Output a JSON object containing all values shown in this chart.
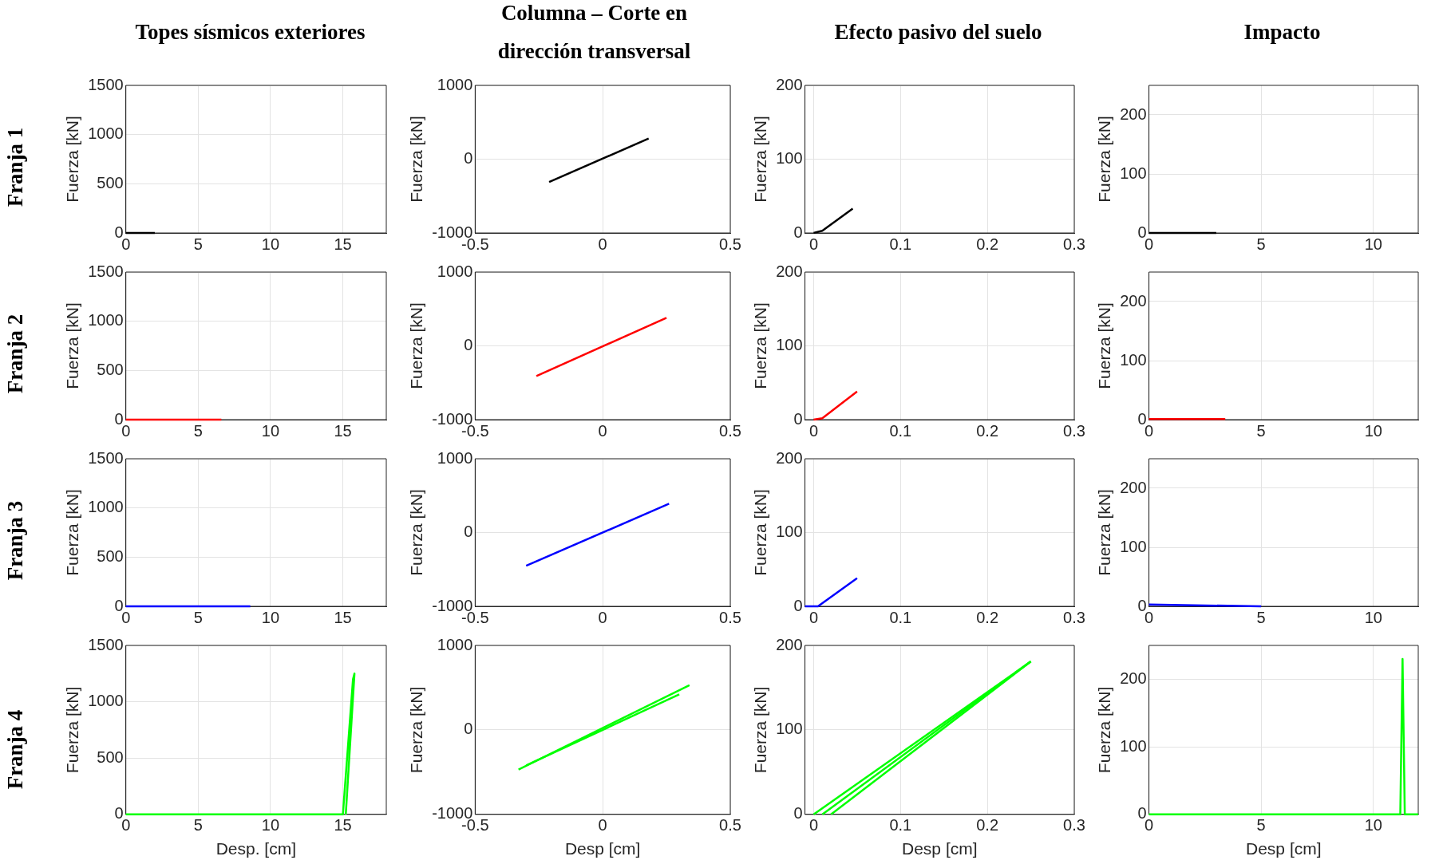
{
  "chart_data": [
    {
      "type": "line",
      "title": "Topes sísmicos exteriores",
      "annotations": [
        "Franja 1"
      ],
      "ylabel": "Fuerza [kN]",
      "xlim": [
        0,
        18
      ],
      "xticks": [
        0,
        5,
        10,
        15
      ],
      "ylim": [
        0,
        1500
      ],
      "yticks": [
        0,
        500,
        1000,
        1500
      ],
      "grid": true,
      "series": [
        {
          "color": "#000000",
          "x": [
            0,
            2
          ],
          "values": [
            0,
            0
          ]
        }
      ]
    },
    {
      "type": "line",
      "title": "Columna – Corte en dirección transversal",
      "ylabel": "Fuerza [kN]",
      "xlim": [
        -0.5,
        0.5
      ],
      "xticks": [
        -0.5,
        0,
        0.5
      ],
      "ylim": [
        -1000,
        1000
      ],
      "yticks": [
        -1000,
        0,
        1000
      ],
      "grid": true,
      "series": [
        {
          "color": "#000000",
          "x": [
            -0.21,
            0.18
          ],
          "values": [
            -310,
            280
          ]
        }
      ]
    },
    {
      "type": "line",
      "title": "Efecto pasivo del suelo",
      "ylabel": "Fuerza [kN]",
      "xlim": [
        -0.01,
        0.3
      ],
      "xticks": [
        0,
        0.1,
        0.2,
        0.3
      ],
      "ylim": [
        0,
        200
      ],
      "yticks": [
        0,
        100,
        200
      ],
      "grid": true,
      "series": [
        {
          "color": "#000000",
          "x": [
            0,
            0.01,
            0.045
          ],
          "values": [
            0,
            3,
            33
          ]
        }
      ]
    },
    {
      "type": "line",
      "title": "Impacto",
      "ylabel": "Fuerza [kN]",
      "xlim": [
        0,
        12
      ],
      "xticks": [
        0,
        5,
        10
      ],
      "ylim": [
        0,
        250
      ],
      "yticks": [
        0,
        100,
        200
      ],
      "grid": true,
      "series": [
        {
          "color": "#000000",
          "x": [
            0,
            3
          ],
          "values": [
            0,
            0
          ]
        }
      ]
    },
    {
      "type": "line",
      "annotations": [
        "Franja 2"
      ],
      "ylabel": "Fuerza [kN]",
      "xlim": [
        0,
        18
      ],
      "xticks": [
        0,
        5,
        10,
        15
      ],
      "ylim": [
        0,
        1500
      ],
      "yticks": [
        0,
        500,
        1000,
        1500
      ],
      "grid": true,
      "series": [
        {
          "color": "#ff0000",
          "x": [
            0,
            6.6
          ],
          "values": [
            0,
            0
          ]
        }
      ]
    },
    {
      "type": "line",
      "ylabel": "Fuerza [kN]",
      "xlim": [
        -0.5,
        0.5
      ],
      "xticks": [
        -0.5,
        0,
        0.5
      ],
      "ylim": [
        -1000,
        1000
      ],
      "yticks": [
        -1000,
        0,
        1000
      ],
      "grid": true,
      "series": [
        {
          "color": "#ff0000",
          "x": [
            -0.26,
            0.25
          ],
          "values": [
            -410,
            380
          ]
        }
      ]
    },
    {
      "type": "line",
      "ylabel": "Fuerza [kN]",
      "xlim": [
        -0.01,
        0.3
      ],
      "xticks": [
        0,
        0.1,
        0.2,
        0.3
      ],
      "ylim": [
        0,
        200
      ],
      "yticks": [
        0,
        100,
        200
      ],
      "grid": true,
      "series": [
        {
          "color": "#ff0000",
          "x": [
            0,
            0.01,
            0.05
          ],
          "values": [
            0,
            2,
            38
          ]
        }
      ]
    },
    {
      "type": "line",
      "ylabel": "Fuerza [kN]",
      "xlim": [
        0,
        12
      ],
      "xticks": [
        0,
        5,
        10
      ],
      "ylim": [
        0,
        250
      ],
      "yticks": [
        0,
        100,
        200
      ],
      "grid": true,
      "series": [
        {
          "color": "#ff0000",
          "x": [
            0,
            3.4
          ],
          "values": [
            1,
            1
          ]
        }
      ]
    },
    {
      "type": "line",
      "annotations": [
        "Franja 3"
      ],
      "ylabel": "Fuerza [kN]",
      "xlim": [
        0,
        18
      ],
      "xticks": [
        0,
        5,
        10,
        15
      ],
      "ylim": [
        0,
        1500
      ],
      "yticks": [
        0,
        500,
        1000,
        1500
      ],
      "grid": true,
      "series": [
        {
          "color": "#0000ff",
          "x": [
            0,
            8.6
          ],
          "values": [
            0,
            0
          ]
        }
      ]
    },
    {
      "type": "line",
      "ylabel": "Fuerza [kN]",
      "xlim": [
        -0.5,
        0.5
      ],
      "xticks": [
        -0.5,
        0,
        0.5
      ],
      "ylim": [
        -1000,
        1000
      ],
      "yticks": [
        -1000,
        0,
        1000
      ],
      "grid": true,
      "series": [
        {
          "color": "#0000ff",
          "x": [
            -0.3,
            0.26
          ],
          "values": [
            -450,
            390
          ]
        }
      ]
    },
    {
      "type": "line",
      "ylabel": "Fuerza [kN]",
      "xlim": [
        -0.01,
        0.3
      ],
      "xticks": [
        0,
        0.1,
        0.2,
        0.3
      ],
      "ylim": [
        0,
        200
      ],
      "yticks": [
        0,
        100,
        200
      ],
      "grid": true,
      "series": [
        {
          "color": "#0000ff",
          "x": [
            -0.01,
            0.005,
            0.05
          ],
          "values": [
            0,
            0,
            38
          ]
        }
      ]
    },
    {
      "type": "line",
      "ylabel": "Fuerza [kN]",
      "xlim": [
        0,
        12
      ],
      "xticks": [
        0,
        5,
        10
      ],
      "ylim": [
        0,
        250
      ],
      "yticks": [
        0,
        100,
        200
      ],
      "grid": true,
      "series": [
        {
          "color": "#0000ff",
          "x": [
            0,
            5
          ],
          "values": [
            3,
            0
          ]
        }
      ]
    },
    {
      "type": "line",
      "annotations": [
        "Franja 4"
      ],
      "xlabel": "Desp. [cm]",
      "ylabel": "Fuerza [kN]",
      "xlim": [
        0,
        18
      ],
      "xticks": [
        0,
        5,
        10,
        15
      ],
      "ylim": [
        0,
        1500
      ],
      "yticks": [
        0,
        500,
        1000,
        1500
      ],
      "grid": true,
      "series": [
        {
          "color": "#00ff00",
          "x": [
            0,
            15,
            15.7,
            15.8,
            15.2
          ],
          "values": [
            0,
            0,
            1200,
            1250,
            0
          ]
        }
      ]
    },
    {
      "type": "line",
      "xlabel": "Desp [cm]",
      "ylabel": "Fuerza [kN]",
      "xlim": [
        -0.5,
        0.5
      ],
      "xticks": [
        -0.5,
        0,
        0.5
      ],
      "ylim": [
        -1000,
        1000
      ],
      "yticks": [
        -1000,
        0,
        1000
      ],
      "grid": true,
      "series": [
        {
          "color": "#00ff00",
          "x": [
            -0.33,
            0.34
          ],
          "values": [
            -470,
            530
          ]
        },
        {
          "color": "#00ff00",
          "x": [
            -0.3,
            0.3
          ],
          "values": [
            -420,
            420
          ]
        }
      ]
    },
    {
      "type": "line",
      "xlabel": "Desp [cm]",
      "ylabel": "Fuerza [kN]",
      "xlim": [
        -0.01,
        0.3
      ],
      "xticks": [
        0,
        0.1,
        0.2,
        0.3
      ],
      "ylim": [
        0,
        200
      ],
      "yticks": [
        0,
        100,
        200
      ],
      "grid": true,
      "series": [
        {
          "color": "#00ff00",
          "x": [
            0,
            0.25
          ],
          "values": [
            0,
            181
          ]
        },
        {
          "color": "#00ff00",
          "x": [
            0.01,
            0.25
          ],
          "values": [
            0,
            181
          ]
        },
        {
          "color": "#00ff00",
          "x": [
            0.02,
            0.25
          ],
          "values": [
            0,
            181
          ]
        }
      ]
    },
    {
      "type": "line",
      "xlabel": "Desp [cm]",
      "ylabel": "Fuerza [kN]",
      "xlim": [
        0,
        12
      ],
      "xticks": [
        0,
        5,
        10
      ],
      "ylim": [
        0,
        250
      ],
      "yticks": [
        0,
        100,
        200
      ],
      "grid": true,
      "series": [
        {
          "color": "#00ff00",
          "x": [
            0,
            11.2,
            11.3,
            11.4,
            12
          ],
          "values": [
            0,
            0,
            230,
            0,
            0
          ]
        }
      ]
    }
  ]
}
